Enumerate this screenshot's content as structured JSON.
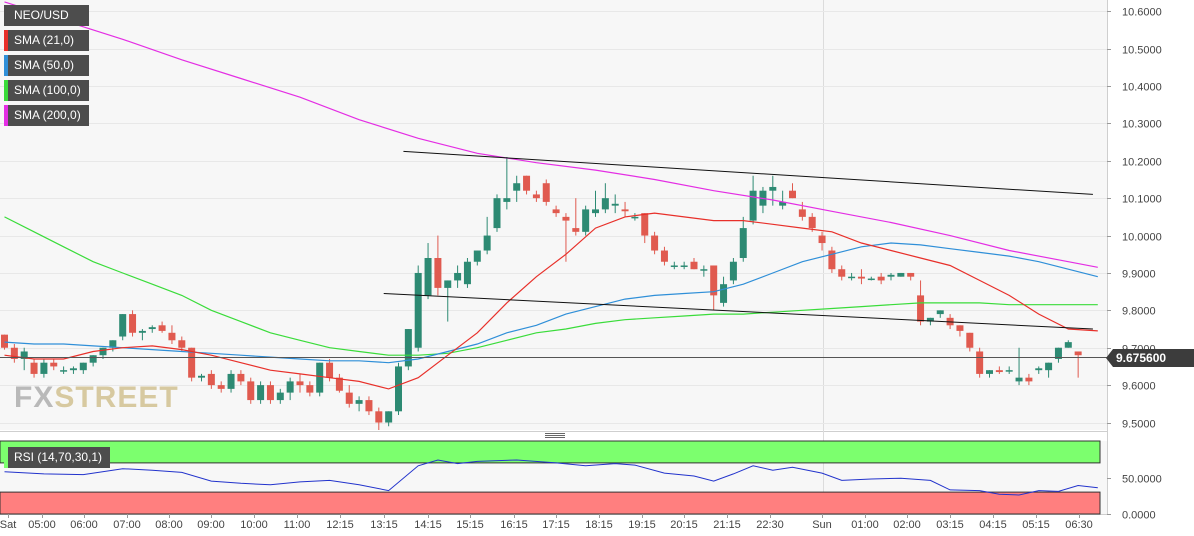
{
  "chart_data": {
    "type": "candlestick",
    "symbol": "NEO/USD",
    "indicators": [
      {
        "label": "NEO/USD",
        "color": "#4d4d4d"
      },
      {
        "label": "SMA (21,0)",
        "color": "#e8302a"
      },
      {
        "label": "SMA (50,0)",
        "color": "#2f8fd8"
      },
      {
        "label": "SMA (100,0)",
        "color": "#3adc3a"
      },
      {
        "label": "SMA (200,0)",
        "color": "#e42ee4"
      }
    ],
    "price_axis": {
      "ticks": [
        "10.6000",
        "10.5000",
        "10.4000",
        "10.3000",
        "10.2000",
        "10.1000",
        "10.0000",
        "9.9000",
        "9.8000",
        "9.7000",
        "9.6000",
        "9.5000"
      ],
      "range": [
        9.48,
        10.63
      ]
    },
    "current_price": "9.675600",
    "time_axis": [
      "Sat",
      "05:00",
      "06:00",
      "07:00",
      "08:00",
      "09:00",
      "10:00",
      "11:00",
      "12:15",
      "13:15",
      "14:15",
      "15:15",
      "16:15",
      "17:15",
      "18:15",
      "19:15",
      "20:15",
      "21:15",
      "22:30",
      "Sun",
      "01:00",
      "02:00",
      "03:15",
      "04:15",
      "05:15",
      "06:30"
    ],
    "watermark": {
      "part1": "FX",
      "part2": "STREET"
    },
    "colors": {
      "up": "#2d8a73",
      "down": "#e05a4f",
      "grid": "#e8e8e8",
      "background": "#f7f7f7"
    },
    "candles": [
      [
        9.735,
        9.735,
        9.695,
        9.7
      ],
      [
        9.7,
        9.71,
        9.66,
        9.67
      ],
      [
        9.67,
        9.7,
        9.64,
        9.69
      ],
      [
        9.66,
        9.67,
        9.62,
        9.63
      ],
      [
        9.63,
        9.67,
        9.62,
        9.66
      ],
      [
        9.66,
        9.67,
        9.64,
        9.65
      ],
      [
        9.64,
        9.65,
        9.63,
        9.64
      ],
      [
        9.64,
        9.65,
        9.63,
        9.645
      ],
      [
        9.64,
        9.66,
        9.63,
        9.66
      ],
      [
        9.66,
        9.68,
        9.65,
        9.68
      ],
      [
        9.68,
        9.7,
        9.67,
        9.7
      ],
      [
        9.7,
        9.72,
        9.69,
        9.72
      ],
      [
        9.73,
        9.79,
        9.72,
        9.79
      ],
      [
        9.79,
        9.8,
        9.73,
        9.74
      ],
      [
        9.74,
        9.75,
        9.72,
        9.745
      ],
      [
        9.75,
        9.76,
        9.74,
        9.755
      ],
      [
        9.76,
        9.77,
        9.74,
        9.745
      ],
      [
        9.74,
        9.76,
        9.71,
        9.72
      ],
      [
        9.72,
        9.73,
        9.69,
        9.7
      ],
      [
        9.7,
        9.7,
        9.61,
        9.62
      ],
      [
        9.62,
        9.63,
        9.61,
        9.625
      ],
      [
        9.63,
        9.64,
        9.59,
        9.6
      ],
      [
        9.6,
        9.61,
        9.58,
        9.59
      ],
      [
        9.59,
        9.64,
        9.58,
        9.63
      ],
      [
        9.63,
        9.64,
        9.6,
        9.61
      ],
      [
        9.61,
        9.62,
        9.55,
        9.56
      ],
      [
        9.56,
        9.61,
        9.55,
        9.6
      ],
      [
        9.6,
        9.61,
        9.55,
        9.56
      ],
      [
        9.56,
        9.59,
        9.55,
        9.58
      ],
      [
        9.58,
        9.62,
        9.56,
        9.61
      ],
      [
        9.61,
        9.63,
        9.58,
        9.6
      ],
      [
        9.6,
        9.61,
        9.57,
        9.58
      ],
      [
        9.58,
        9.66,
        9.57,
        9.66
      ],
      [
        9.66,
        9.67,
        9.61,
        9.62
      ],
      [
        9.62,
        9.63,
        9.58,
        9.585
      ],
      [
        9.58,
        9.6,
        9.54,
        9.55
      ],
      [
        9.55,
        9.57,
        9.53,
        9.56
      ],
      [
        9.56,
        9.57,
        9.52,
        9.53
      ],
      [
        9.53,
        9.54,
        9.48,
        9.5
      ],
      [
        9.5,
        9.53,
        9.49,
        9.53
      ],
      [
        9.53,
        9.66,
        9.52,
        9.65
      ],
      [
        9.65,
        9.75,
        9.64,
        9.75
      ],
      [
        9.7,
        9.92,
        9.69,
        9.9
      ],
      [
        9.84,
        9.98,
        9.83,
        9.94
      ],
      [
        9.94,
        10.0,
        9.84,
        9.86
      ],
      [
        9.86,
        9.88,
        9.77,
        9.88
      ],
      [
        9.88,
        9.92,
        9.86,
        9.9
      ],
      [
        9.87,
        9.94,
        9.86,
        9.93
      ],
      [
        9.93,
        9.96,
        9.92,
        9.96
      ],
      [
        9.96,
        10.05,
        9.95,
        10.0
      ],
      [
        10.02,
        10.11,
        10.01,
        10.1
      ],
      [
        10.09,
        10.21,
        10.07,
        10.1
      ],
      [
        10.12,
        10.16,
        10.09,
        10.14
      ],
      [
        10.16,
        10.16,
        10.11,
        10.12
      ],
      [
        10.11,
        10.12,
        10.09,
        10.1
      ],
      [
        10.14,
        10.15,
        10.08,
        10.09
      ],
      [
        10.07,
        10.08,
        10.05,
        10.06
      ],
      [
        10.05,
        10.06,
        9.93,
        10.04
      ],
      [
        10.02,
        10.1,
        10.0,
        10.01
      ],
      [
        10.01,
        10.08,
        10.0,
        10.07
      ],
      [
        10.06,
        10.12,
        10.05,
        10.07
      ],
      [
        10.07,
        10.14,
        10.06,
        10.1
      ],
      [
        10.08,
        10.11,
        10.06,
        10.085
      ],
      [
        10.07,
        10.09,
        10.05,
        10.065
      ],
      [
        10.05,
        10.06,
        10.04,
        10.05
      ],
      [
        10.06,
        10.06,
        9.98,
        10.0
      ],
      [
        10.0,
        10.01,
        9.95,
        9.96
      ],
      [
        9.96,
        9.97,
        9.92,
        9.93
      ],
      [
        9.92,
        9.93,
        9.91,
        9.92
      ],
      [
        9.92,
        9.93,
        9.91,
        9.92
      ],
      [
        9.93,
        9.94,
        9.91,
        9.91
      ],
      [
        9.91,
        9.92,
        9.89,
        9.91
      ],
      [
        9.92,
        9.92,
        9.8,
        9.84
      ],
      [
        9.82,
        9.89,
        9.81,
        9.87
      ],
      [
        9.88,
        9.94,
        9.87,
        9.93
      ],
      [
        9.94,
        10.05,
        9.93,
        10.02
      ],
      [
        10.04,
        10.16,
        10.03,
        10.12
      ],
      [
        10.08,
        10.13,
        10.06,
        10.12
      ],
      [
        10.12,
        10.16,
        10.08,
        10.13
      ],
      [
        10.08,
        10.12,
        10.07,
        10.09
      ],
      [
        10.12,
        10.14,
        10.1,
        10.1
      ],
      [
        10.07,
        10.09,
        10.04,
        10.05
      ],
      [
        10.05,
        10.06,
        10.01,
        10.02
      ],
      [
        10.0,
        10.01,
        9.96,
        9.98
      ],
      [
        9.96,
        9.97,
        9.9,
        9.91
      ],
      [
        9.91,
        9.92,
        9.88,
        9.89
      ],
      [
        9.89,
        9.9,
        9.88,
        9.89
      ],
      [
        9.89,
        9.91,
        9.87,
        9.885
      ],
      [
        9.885,
        9.89,
        9.88,
        9.885
      ],
      [
        9.89,
        9.9,
        9.87,
        9.88
      ],
      [
        9.89,
        9.9,
        9.88,
        9.895
      ],
      [
        9.89,
        9.9,
        9.89,
        9.9
      ],
      [
        9.9,
        9.9,
        9.88,
        9.89
      ],
      [
        9.84,
        9.88,
        9.76,
        9.77
      ],
      [
        9.77,
        9.78,
        9.76,
        9.78
      ],
      [
        9.79,
        9.8,
        9.78,
        9.8
      ],
      [
        9.78,
        9.79,
        9.75,
        9.76
      ],
      [
        9.76,
        9.76,
        9.73,
        9.745
      ],
      [
        9.74,
        9.74,
        9.69,
        9.7
      ],
      [
        9.69,
        9.7,
        9.62,
        9.63
      ],
      [
        9.63,
        9.64,
        9.62,
        9.64
      ],
      [
        9.64,
        9.65,
        9.63,
        9.635
      ],
      [
        9.64,
        9.65,
        9.63,
        9.64
      ],
      [
        9.61,
        9.7,
        9.6,
        9.62
      ],
      [
        9.62,
        9.63,
        9.6,
        9.61
      ],
      [
        9.64,
        9.65,
        9.63,
        9.645
      ],
      [
        9.64,
        9.66,
        9.62,
        9.66
      ],
      [
        9.67,
        9.7,
        9.66,
        9.7
      ],
      [
        9.7,
        9.72,
        9.7,
        9.715
      ],
      [
        9.69,
        9.69,
        9.62,
        9.68
      ]
    ],
    "sma21": [
      [
        0,
        9.68
      ],
      [
        3,
        9.67
      ],
      [
        6,
        9.67
      ],
      [
        9,
        9.69
      ],
      [
        12,
        9.7
      ],
      [
        15,
        9.705
      ],
      [
        18,
        9.695
      ],
      [
        21,
        9.68
      ],
      [
        24,
        9.66
      ],
      [
        27,
        9.64
      ],
      [
        30,
        9.63
      ],
      [
        33,
        9.62
      ],
      [
        36,
        9.61
      ],
      [
        39,
        9.59
      ],
      [
        42,
        9.62
      ],
      [
        45,
        9.68
      ],
      [
        48,
        9.74
      ],
      [
        51,
        9.82
      ],
      [
        54,
        9.89
      ],
      [
        57,
        9.95
      ],
      [
        60,
        10.02
      ],
      [
        63,
        10.05
      ],
      [
        66,
        10.06
      ],
      [
        69,
        10.05
      ],
      [
        72,
        10.04
      ],
      [
        75,
        10.04
      ],
      [
        78,
        10.03
      ],
      [
        81,
        10.02
      ],
      [
        84,
        10.01
      ],
      [
        87,
        9.98
      ],
      [
        90,
        9.96
      ],
      [
        93,
        9.94
      ],
      [
        96,
        9.92
      ],
      [
        99,
        9.88
      ],
      [
        102,
        9.84
      ],
      [
        105,
        9.79
      ],
      [
        108,
        9.75
      ],
      [
        111,
        9.745
      ]
    ],
    "sma50": [
      [
        0,
        9.715
      ],
      [
        3,
        9.71
      ],
      [
        6,
        9.71
      ],
      [
        9,
        9.705
      ],
      [
        12,
        9.7
      ],
      [
        15,
        9.695
      ],
      [
        18,
        9.69
      ],
      [
        21,
        9.685
      ],
      [
        24,
        9.68
      ],
      [
        27,
        9.675
      ],
      [
        30,
        9.67
      ],
      [
        33,
        9.665
      ],
      [
        36,
        9.665
      ],
      [
        39,
        9.66
      ],
      [
        42,
        9.67
      ],
      [
        45,
        9.69
      ],
      [
        48,
        9.71
      ],
      [
        51,
        9.74
      ],
      [
        54,
        9.76
      ],
      [
        57,
        9.79
      ],
      [
        60,
        9.81
      ],
      [
        63,
        9.83
      ],
      [
        66,
        9.84
      ],
      [
        69,
        9.845
      ],
      [
        72,
        9.85
      ],
      [
        75,
        9.87
      ],
      [
        78,
        9.9
      ],
      [
        81,
        9.93
      ],
      [
        84,
        9.95
      ],
      [
        87,
        9.97
      ],
      [
        90,
        9.98
      ],
      [
        93,
        9.975
      ],
      [
        96,
        9.965
      ],
      [
        99,
        9.955
      ],
      [
        102,
        9.945
      ],
      [
        105,
        9.93
      ],
      [
        108,
        9.91
      ],
      [
        111,
        9.89
      ]
    ],
    "sma100": [
      [
        0,
        10.05
      ],
      [
        3,
        10.01
      ],
      [
        6,
        9.97
      ],
      [
        9,
        9.93
      ],
      [
        12,
        9.9
      ],
      [
        15,
        9.87
      ],
      [
        18,
        9.84
      ],
      [
        21,
        9.8
      ],
      [
        24,
        9.77
      ],
      [
        27,
        9.74
      ],
      [
        30,
        9.72
      ],
      [
        33,
        9.7
      ],
      [
        36,
        9.69
      ],
      [
        39,
        9.68
      ],
      [
        42,
        9.68
      ],
      [
        45,
        9.685
      ],
      [
        48,
        9.7
      ],
      [
        51,
        9.72
      ],
      [
        54,
        9.74
      ],
      [
        57,
        9.75
      ],
      [
        60,
        9.765
      ],
      [
        63,
        9.775
      ],
      [
        66,
        9.78
      ],
      [
        69,
        9.785
      ],
      [
        72,
        9.79
      ],
      [
        75,
        9.79
      ],
      [
        78,
        9.795
      ],
      [
        81,
        9.8
      ],
      [
        84,
        9.805
      ],
      [
        87,
        9.81
      ],
      [
        90,
        9.815
      ],
      [
        93,
        9.82
      ],
      [
        96,
        9.82
      ],
      [
        99,
        9.82
      ],
      [
        102,
        9.815
      ],
      [
        105,
        9.815
      ],
      [
        108,
        9.815
      ],
      [
        111,
        9.815
      ]
    ],
    "sma200": [
      [
        0,
        10.625
      ],
      [
        6,
        10.575
      ],
      [
        12,
        10.525
      ],
      [
        18,
        10.47
      ],
      [
        24,
        10.42
      ],
      [
        30,
        10.37
      ],
      [
        36,
        10.31
      ],
      [
        42,
        10.26
      ],
      [
        48,
        10.22
      ],
      [
        54,
        10.195
      ],
      [
        60,
        10.175
      ],
      [
        66,
        10.15
      ],
      [
        72,
        10.12
      ],
      [
        78,
        10.095
      ],
      [
        84,
        10.065
      ],
      [
        90,
        10.035
      ],
      [
        96,
        10.0
      ],
      [
        102,
        9.96
      ],
      [
        108,
        9.93
      ],
      [
        111,
        9.915
      ]
    ],
    "trendlines": [
      {
        "from": [
          40.5,
          10.225
        ],
        "to": [
          110.5,
          10.11
        ]
      },
      {
        "from": [
          38.5,
          9.845
        ],
        "to": [
          110.5,
          9.75
        ]
      }
    ],
    "rsi": {
      "label": "RSI (14,70,30,1)",
      "ticks": [
        "50.0000",
        "0.0000"
      ],
      "range": [
        0,
        100
      ],
      "overbought": 70,
      "oversold": 30,
      "points": [
        [
          0,
          58
        ],
        [
          4,
          55
        ],
        [
          8,
          54
        ],
        [
          12,
          62
        ],
        [
          15,
          60
        ],
        [
          18,
          57
        ],
        [
          21,
          45
        ],
        [
          24,
          42
        ],
        [
          27,
          40
        ],
        [
          30,
          44
        ],
        [
          33,
          46
        ],
        [
          36,
          40
        ],
        [
          39,
          32
        ],
        [
          42,
          66
        ],
        [
          44,
          74
        ],
        [
          46,
          69
        ],
        [
          48,
          72
        ],
        [
          52,
          74
        ],
        [
          56,
          70
        ],
        [
          59,
          66
        ],
        [
          62,
          69
        ],
        [
          64,
          67
        ],
        [
          67,
          56
        ],
        [
          70,
          52
        ],
        [
          72,
          45
        ],
        [
          74,
          55
        ],
        [
          76,
          66
        ],
        [
          78,
          60
        ],
        [
          80,
          64
        ],
        [
          83,
          56
        ],
        [
          85,
          46
        ],
        [
          88,
          48
        ],
        [
          91,
          49
        ],
        [
          94,
          46
        ],
        [
          96,
          33
        ],
        [
          99,
          32
        ],
        [
          101,
          27
        ],
        [
          103,
          26
        ],
        [
          105,
          32
        ],
        [
          107,
          31
        ],
        [
          109,
          39
        ],
        [
          111,
          36
        ]
      ]
    }
  }
}
